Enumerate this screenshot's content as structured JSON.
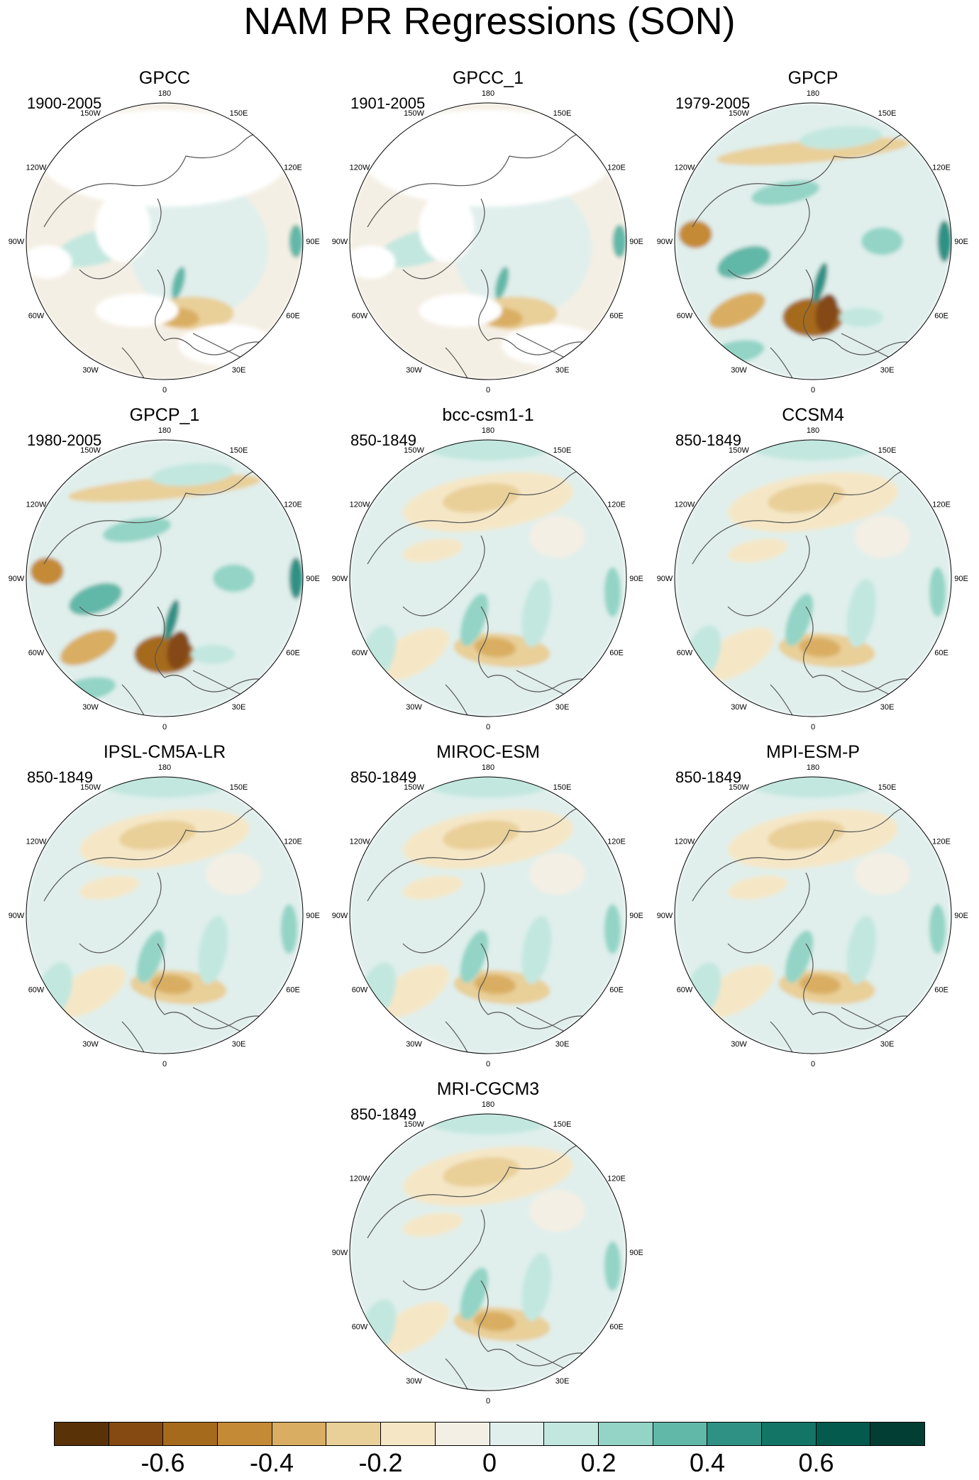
{
  "figure": {
    "title": "NAM PR Regressions (SON)"
  },
  "panels": [
    {
      "title": "GPCC",
      "period": "1900-2005",
      "pattern": "obs_sparse"
    },
    {
      "title": "GPCC_1",
      "period": "1901-2005",
      "pattern": "obs_sparse"
    },
    {
      "title": "GPCP",
      "period": "1979-2005",
      "pattern": "obs_strong"
    },
    {
      "title": "GPCP_1",
      "period": "1980-2005",
      "pattern": "obs_strong"
    },
    {
      "title": "bcc-csm1-1",
      "period": "850-1849",
      "pattern": "model"
    },
    {
      "title": "CCSM4",
      "period": "850-1849",
      "pattern": "model"
    },
    {
      "title": "IPSL-CM5A-LR",
      "period": "850-1849",
      "pattern": "model"
    },
    {
      "title": "MIROC-ESM",
      "period": "850-1849",
      "pattern": "model"
    },
    {
      "title": "MPI-ESM-P",
      "period": "850-1849",
      "pattern": "model"
    },
    {
      "title": "MRI-CGCM3",
      "period": "850-1849",
      "pattern": "model"
    }
  ],
  "map_labels": {
    "top": "180",
    "bottom": "0",
    "left": "90W",
    "right": "90E",
    "upper_left": "150W",
    "upper_right": "150E",
    "left_upper": "120W",
    "right_upper": "120E",
    "left_lower": "60W",
    "right_lower": "60E",
    "lower_left": "30W",
    "lower_right": "30E"
  },
  "colorbar": {
    "colors": [
      "#5a3208",
      "#844a12",
      "#a66a1c",
      "#c48a36",
      "#d9ae62",
      "#e9cf98",
      "#f5e7c6",
      "#f4efe4",
      "#e0efec",
      "#c2e7df",
      "#93d4c6",
      "#62b8a8",
      "#2f9184",
      "#137566",
      "#045a4c",
      "#023e34"
    ],
    "tick_labels": [
      "-0.6",
      "-0.4",
      "-0.2",
      "0",
      "0.2",
      "0.4",
      "0.6"
    ],
    "tick_values": [
      -0.6,
      -0.4,
      -0.2,
      0,
      0.2,
      0.4,
      0.6
    ],
    "range": [
      -0.8,
      0.8
    ]
  },
  "pattern_colors": {
    "land_missing": "#ffffff",
    "coast": "#555555"
  }
}
